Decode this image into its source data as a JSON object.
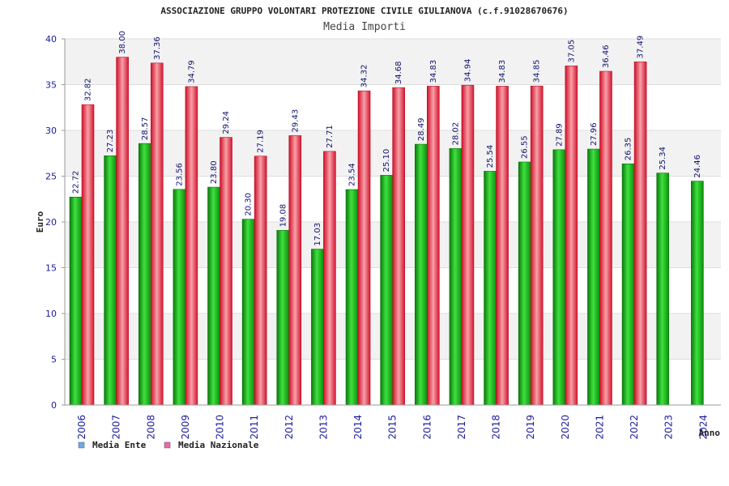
{
  "chart_data": {
    "type": "bar",
    "title": "ASSOCIAZIONE GRUPPO VOLONTARI PROTEZIONE CIVILE GIULIANOVA (c.f.91028670676)",
    "subtitle": "Media Importi",
    "xlabel": "Anno",
    "ylabel": "Euro",
    "ylim": [
      0,
      40
    ],
    "yticks": [
      0,
      5,
      10,
      15,
      20,
      25,
      30,
      35,
      40
    ],
    "categories": [
      "2006",
      "2007",
      "2008",
      "2009",
      "2010",
      "2011",
      "2012",
      "2013",
      "2014",
      "2015",
      "2016",
      "2017",
      "2018",
      "2019",
      "2020",
      "2021",
      "2022",
      "2023",
      "2024"
    ],
    "series": [
      {
        "name": "Media Ente",
        "color": "#1fb81f",
        "legend_color": "#6ea8e8",
        "values": [
          22.72,
          27.23,
          28.57,
          23.56,
          23.8,
          20.3,
          19.08,
          17.03,
          23.54,
          25.1,
          28.49,
          28.02,
          25.54,
          26.55,
          27.89,
          27.96,
          26.35,
          25.34,
          24.46
        ],
        "labels": [
          "22.72",
          "27.23",
          "28.57",
          "23.56",
          "23.80",
          "20.30",
          "19.08",
          "17.03",
          "23.54",
          "25.10",
          "28.49",
          "28.02",
          "25.54",
          "26.55",
          "27.89",
          "27.96",
          "26.35",
          "25.34",
          "24.46"
        ]
      },
      {
        "name": "Media Nazionale",
        "color": "#e82030",
        "legend_color": "#e86aa8",
        "values": [
          32.82,
          38.0,
          37.36,
          34.79,
          29.24,
          27.19,
          29.43,
          27.71,
          34.32,
          34.68,
          34.83,
          34.94,
          34.83,
          34.85,
          37.05,
          36.46,
          37.49,
          null,
          null
        ],
        "labels": [
          "32.82",
          "38.00",
          "37.36",
          "34.79",
          "29.24",
          "27.19",
          "29.43",
          "27.71",
          "34.32",
          "34.68",
          "34.83",
          "34.94",
          "34.83",
          "34.85",
          "37.05",
          "36.46",
          "37.49",
          null,
          null
        ]
      }
    ],
    "grid": true,
    "legend_position": "bottom-left"
  }
}
